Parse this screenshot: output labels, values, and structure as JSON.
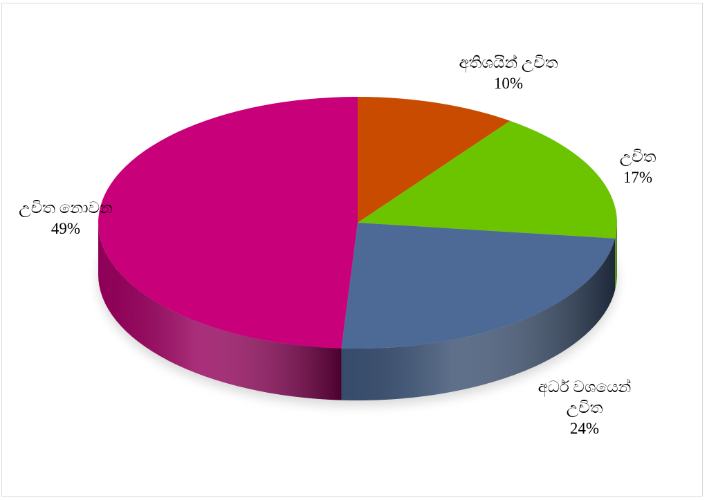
{
  "chart_data": {
    "type": "pie",
    "categories": [
      "අතිශයින් උචිත",
      "උචිත",
      "අධර් වශයෙන් උචිත",
      "උචිත නොවන"
    ],
    "values": [
      10,
      17,
      24,
      49
    ],
    "value_labels": [
      "10%",
      "17%",
      "24%",
      "49%"
    ],
    "colors": [
      "#c84b00",
      "#6cc400",
      "#4d6a97",
      "#c8007a"
    ],
    "three_d": true
  }
}
